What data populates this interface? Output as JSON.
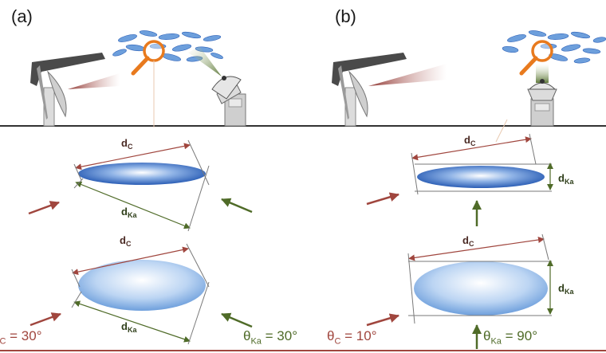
{
  "panels": [
    {
      "label": "(a)",
      "near": {
        "d_main": "d",
        "d_sub": "C"
      },
      "near_ka": {
        "d_main": "d",
        "d_sub": "Ka"
      },
      "far": {
        "d_main": "d",
        "d_sub": "C"
      },
      "far_ka": {
        "d_main": "d",
        "d_sub": "Ka"
      },
      "theta_c": {
        "symbol": "θ",
        "sub": "C",
        "value": " = 30°"
      },
      "theta_ka": {
        "symbol": "θ",
        "sub": "Ka",
        "value": " = 30°"
      }
    },
    {
      "label": "(b)",
      "near": {
        "d_main": "d",
        "d_sub": "C"
      },
      "near_ka": {
        "d_main": "d",
        "d_sub": "Ka"
      },
      "far": {
        "d_main": "d",
        "d_sub": "C"
      },
      "far_ka": {
        "d_main": "d",
        "d_sub": "Ka"
      },
      "theta_c": {
        "symbol": "θ",
        "sub": "C",
        "value": " = 10°"
      },
      "theta_ka": {
        "symbol": "θ",
        "sub": "Ka",
        "value": " = 90°"
      }
    }
  ],
  "colors": {
    "red_arrow": "#a0463e",
    "green_arrow": "#4f6b28",
    "ground": "#333333",
    "magnifier": "#e87a1e",
    "ellipse_dark": "#2f62b8",
    "ellipse_light": "#b9d3f0",
    "bottom_rule": "#a0463e"
  },
  "icons": {
    "radar_dish": "radar-dish-icon",
    "radar_dome": "radar-dome-icon",
    "magnifier": "magnifier-icon",
    "particles": "ice-particles-icon"
  }
}
